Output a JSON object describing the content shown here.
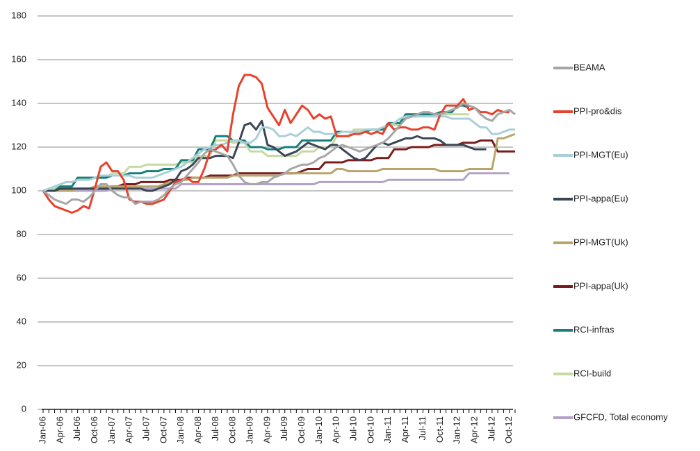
{
  "chart_data": {
    "type": "line",
    "categories": [
      "Jan-06",
      null,
      null,
      "Apr-06",
      null,
      null,
      "Jul-06",
      null,
      null,
      "Oct-06",
      null,
      null,
      "Jan-07",
      null,
      null,
      "Apr-07",
      null,
      null,
      "Jul-07",
      null,
      null,
      "Oct-07",
      null,
      null,
      "Jan-08",
      null,
      null,
      "Apr-08",
      null,
      null,
      "Jul-08",
      null,
      null,
      "Oct-08",
      null,
      null,
      "Jan-09",
      null,
      null,
      "Apr-09",
      null,
      null,
      "Jul-09",
      null,
      null,
      "Oct-09",
      null,
      null,
      "Jan-10",
      null,
      null,
      "Apr-10",
      null,
      null,
      "Jul-10",
      null,
      null,
      "Oct-10",
      null,
      null,
      "Jan-11",
      null,
      null,
      "Apr-11",
      null,
      null,
      "Jul-11",
      null,
      null,
      "Oct-11",
      null,
      null,
      "Jan-12",
      null,
      null,
      "Apr-12",
      null,
      null,
      "Jul-12",
      null,
      null,
      "Oct-12",
      null
    ],
    "ylim": [
      0,
      180
    ],
    "yticks": [
      0,
      20,
      40,
      60,
      80,
      100,
      120,
      140,
      160,
      180
    ],
    "grid": true,
    "legend": "right",
    "series": [
      {
        "name": "BEAMA",
        "color": "#a6a6a6",
        "values": [
          100,
          98,
          96,
          95,
          94,
          96,
          96,
          95,
          97,
          100,
          103,
          103,
          100,
          98,
          97,
          97,
          94,
          95,
          95,
          95,
          96,
          98,
          101,
          103,
          104,
          107,
          110,
          113,
          117,
          119,
          118,
          117,
          116,
          112,
          107,
          104,
          103,
          103,
          104,
          104,
          106,
          107,
          108,
          110,
          111,
          112,
          112,
          113,
          115,
          116,
          118,
          120,
          121,
          120,
          119,
          118,
          119,
          120,
          121,
          122,
          124,
          127,
          130,
          133,
          134,
          135,
          136,
          136,
          135,
          135,
          136,
          137,
          138,
          140,
          139,
          138,
          135,
          133,
          132,
          135,
          136,
          137,
          135
        ]
      },
      {
        "name": "PPI-pro&dis",
        "color": "#e8412c",
        "values": [
          100,
          96,
          93,
          92,
          91,
          90,
          91,
          93,
          92,
          101,
          111,
          113,
          109,
          109,
          105,
          96,
          95,
          95,
          94,
          94,
          95,
          96,
          100,
          104,
          105,
          106,
          104,
          104,
          110,
          118,
          119,
          121,
          118,
          135,
          148,
          153,
          153,
          152,
          149,
          138,
          134,
          130,
          137,
          131,
          135,
          139,
          137,
          133,
          135,
          133,
          134,
          125,
          125,
          125,
          126,
          126,
          127,
          126,
          127,
          126,
          131,
          128,
          129,
          129,
          128,
          128,
          129,
          129,
          128,
          135,
          139,
          139,
          139,
          142,
          137,
          138,
          136,
          136,
          135,
          137,
          136,
          136,
          null
        ]
      },
      {
        "name": "PPI-MGT(Eu)",
        "color": "#a9cfd8",
        "values": [
          100,
          101,
          102,
          103,
          104,
          104,
          105,
          105,
          105,
          106,
          107,
          107,
          107,
          107,
          107,
          107,
          106,
          106,
          106,
          106,
          107,
          108,
          109,
          110,
          111,
          113,
          115,
          117,
          119,
          120,
          121,
          121,
          122,
          123,
          123,
          122,
          122,
          124,
          129,
          129,
          128,
          125,
          125,
          126,
          125,
          127,
          129,
          127,
          127,
          126,
          126,
          126,
          127,
          127,
          127,
          127,
          128,
          128,
          128,
          129,
          130,
          131,
          133,
          134,
          134,
          134,
          134,
          134,
          134,
          134,
          134,
          133,
          133,
          133,
          133,
          131,
          129,
          129,
          126,
          126,
          127,
          128,
          128
        ]
      },
      {
        "name": "PPI-appa(Eu)",
        "color": "#3a4654",
        "values": [
          100,
          100,
          100,
          101,
          101,
          101,
          101,
          101,
          101,
          101,
          101,
          101,
          101,
          101,
          101,
          101,
          101,
          101,
          100,
          100,
          101,
          102,
          103,
          105,
          109,
          110,
          112,
          115,
          115,
          115,
          116,
          116,
          116,
          115,
          122,
          130,
          131,
          128,
          132,
          121,
          120,
          118,
          116,
          117,
          118,
          120,
          122,
          121,
          120,
          119,
          121,
          121,
          119,
          117,
          115,
          114,
          115,
          118,
          121,
          122,
          121,
          122,
          123,
          124,
          124,
          125,
          124,
          124,
          124,
          123,
          121,
          121,
          121,
          121,
          120,
          119,
          119,
          119,
          null,
          null,
          null,
          null,
          null
        ]
      },
      {
        "name": "PPI-MGT(Uk)",
        "color": "#b8a56a",
        "values": [
          100,
          100,
          100,
          100,
          100,
          100,
          101,
          101,
          101,
          102,
          102,
          102,
          102,
          102,
          102,
          102,
          102,
          102,
          102,
          102,
          102,
          103,
          104,
          104,
          105,
          105,
          106,
          106,
          106,
          106,
          106,
          106,
          106,
          107,
          107,
          107,
          107,
          107,
          107,
          107,
          107,
          107,
          108,
          108,
          108,
          108,
          108,
          108,
          108,
          108,
          108,
          110,
          110,
          109,
          109,
          109,
          109,
          109,
          109,
          110,
          110,
          110,
          110,
          110,
          110,
          110,
          110,
          110,
          110,
          109,
          109,
          109,
          109,
          109,
          110,
          110,
          110,
          110,
          110,
          124,
          124,
          125,
          126
        ]
      },
      {
        "name": "PPI-appa(Uk)",
        "color": "#7b1c1c",
        "values": [
          100,
          100,
          100,
          100,
          101,
          101,
          101,
          101,
          101,
          101,
          101,
          101,
          102,
          102,
          103,
          103,
          103,
          104,
          104,
          104,
          104,
          104,
          105,
          105,
          105,
          106,
          106,
          106,
          106,
          107,
          107,
          107,
          107,
          107,
          108,
          108,
          108,
          108,
          108,
          108,
          108,
          108,
          108,
          108,
          108,
          109,
          110,
          110,
          110,
          113,
          113,
          113,
          113,
          114,
          114,
          114,
          114,
          114,
          115,
          115,
          115,
          119,
          119,
          119,
          120,
          120,
          120,
          120,
          121,
          121,
          121,
          121,
          121,
          122,
          122,
          122,
          123,
          123,
          123,
          118,
          118,
          118,
          118
        ]
      },
      {
        "name": "RCI-infras",
        "color": "#167f7a",
        "values": [
          100,
          100,
          100,
          102,
          102,
          102,
          106,
          106,
          106,
          106,
          106,
          106,
          107,
          107,
          107,
          108,
          108,
          108,
          109,
          109,
          109,
          110,
          110,
          110,
          114,
          114,
          114,
          119,
          119,
          119,
          125,
          125,
          125,
          123,
          123,
          123,
          120,
          120,
          120,
          119,
          119,
          119,
          120,
          120,
          120,
          123,
          123,
          123,
          123,
          123,
          123,
          127,
          127,
          127,
          127,
          127,
          127,
          128,
          128,
          128,
          131,
          131,
          131,
          135,
          135,
          135,
          135,
          135,
          135,
          136,
          136,
          136,
          139,
          139,
          138,
          null,
          null,
          null,
          null,
          null,
          null,
          null,
          null
        ]
      },
      {
        "name": "RCI-build",
        "color": "#c5d9a0",
        "values": [
          100,
          100,
          101,
          102,
          102,
          102,
          106,
          106,
          106,
          106,
          106,
          106,
          108,
          108,
          108,
          111,
          111,
          111,
          112,
          112,
          112,
          112,
          112,
          112,
          113,
          113,
          113,
          116,
          116,
          116,
          123,
          123,
          123,
          122,
          122,
          122,
          118,
          118,
          118,
          116,
          116,
          116,
          116,
          116,
          116,
          118,
          118,
          118,
          120,
          120,
          120,
          125,
          125,
          125,
          128,
          128,
          128,
          128,
          128,
          128,
          130,
          130,
          130,
          135,
          135,
          135,
          135,
          135,
          135,
          135,
          135,
          135,
          135,
          135,
          135,
          null,
          null,
          null,
          null,
          null,
          null,
          null,
          null
        ]
      },
      {
        "name": "GFCFD, Total economy",
        "color": "#b3a2c7",
        "values": [
          100,
          100,
          100,
          100,
          100,
          100,
          100,
          100,
          100,
          100,
          100,
          100,
          101,
          101,
          101,
          101,
          101,
          101,
          101,
          101,
          101,
          101,
          101,
          101,
          103,
          103,
          103,
          103,
          103,
          103,
          103,
          103,
          103,
          103,
          103,
          103,
          103,
          103,
          103,
          103,
          103,
          103,
          103,
          103,
          103,
          103,
          103,
          103,
          104,
          104,
          104,
          104,
          104,
          104,
          104,
          104,
          104,
          104,
          104,
          104,
          105,
          105,
          105,
          105,
          105,
          105,
          105,
          105,
          105,
          105,
          105,
          105,
          105,
          105,
          108,
          108,
          108,
          108,
          108,
          108,
          108,
          108,
          null
        ]
      }
    ]
  }
}
